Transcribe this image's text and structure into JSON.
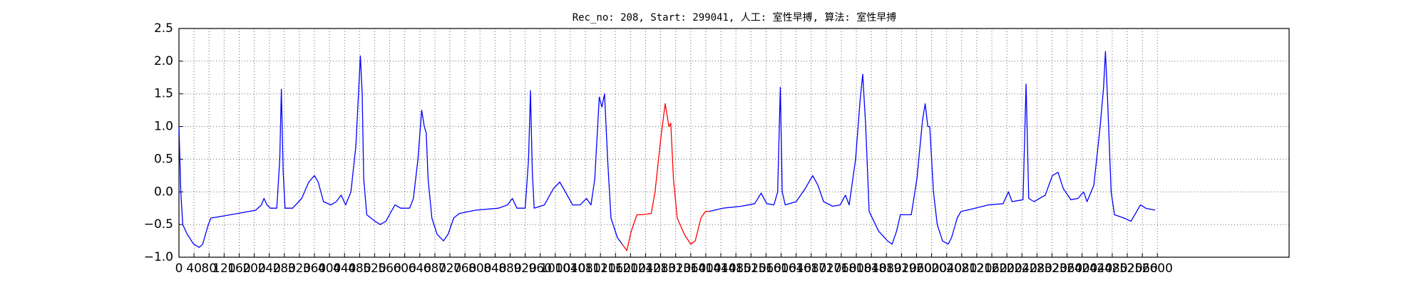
{
  "chart_data": {
    "type": "line",
    "title": "Rec_no: 208, Start: 299041, 人工: 室性早搏, 算法: 室性早搏",
    "xlim": [
      0,
      2950
    ],
    "xticks": [
      0,
      40,
      80,
      120,
      160,
      200,
      240,
      280,
      320,
      360,
      400,
      440,
      480,
      520,
      560,
      600,
      640,
      680,
      720,
      760,
      800,
      840,
      880,
      920,
      960,
      1000,
      1040,
      1080,
      1120,
      1160,
      1200,
      1240,
      1280,
      1320,
      1360,
      1400,
      1440,
      1480,
      1520,
      1560,
      1600,
      1640,
      1680,
      1720,
      1760,
      1800,
      1840,
      1880,
      1920,
      1960,
      2000,
      2040,
      2080,
      2120,
      2160,
      2200,
      2240,
      2280,
      2320,
      2360,
      2400,
      2440,
      2480,
      2520,
      2560,
      2600
    ],
    "ylim": [
      -1,
      2.5
    ],
    "yticks": [
      {
        "value": -1,
        "label": "−1.0"
      },
      {
        "value": -0.5,
        "label": "−0.5"
      },
      {
        "value": 0,
        "label": "0.0"
      },
      0.5,
      {
        "value": 1,
        "label": "1.0"
      },
      1.5,
      {
        "value": 2,
        "label": "2.0"
      },
      2.5
    ],
    "grid": true,
    "series": [
      {
        "color": "#0000ff",
        "x": [
          0,
          5,
          10,
          22,
          39,
          54,
          63,
          78,
          85,
          107,
          156,
          204,
          219,
          226,
          234,
          243,
          260,
          268,
          272,
          277,
          282,
          302,
          326,
          345,
          360,
          370,
          384,
          404,
          418,
          431,
          443,
          457,
          470,
          477,
          482,
          487,
          491,
          499,
          521,
          535,
          550,
          564,
          574,
          589,
          613,
          623,
          635,
          645,
          652,
          657,
          662,
          672,
          686,
          703,
          715,
          730,
          745,
          788,
          849,
          873,
          886,
          898,
          920,
          929,
          934,
          939,
          944,
          971,
          995,
          1012,
          1027,
          1046,
          1066,
          1083,
          1095,
          1105,
          1117,
          1124,
          1131,
          1139,
          1148,
          1165,
          1178
        ],
        "values": [
          1.0,
          0.0,
          -0.5,
          -0.65,
          -0.8,
          -0.85,
          -0.8,
          -0.5,
          -0.4,
          -0.38,
          -0.33,
          -0.28,
          -0.2,
          -0.1,
          -0.2,
          -0.25,
          -0.25,
          0.5,
          1.57,
          0.3,
          -0.25,
          -0.25,
          -0.1,
          0.15,
          0.25,
          0.15,
          -0.15,
          -0.2,
          -0.15,
          -0.05,
          -0.2,
          0.0,
          0.7,
          1.5,
          2.08,
          1.5,
          0.2,
          -0.35,
          -0.45,
          -0.5,
          -0.45,
          -0.3,
          -0.2,
          -0.25,
          -0.25,
          -0.1,
          0.5,
          1.25,
          1.0,
          0.9,
          0.2,
          -0.4,
          -0.65,
          -0.75,
          -0.65,
          -0.4,
          -0.33,
          -0.28,
          -0.25,
          -0.2,
          -0.1,
          -0.25,
          -0.25,
          0.5,
          1.55,
          0.3,
          -0.25,
          -0.2,
          0.05,
          0.15,
          0.0,
          -0.2,
          -0.2,
          -0.1,
          -0.2,
          0.2,
          1.45,
          1.3,
          1.5,
          0.5,
          -0.4,
          -0.7,
          -0.8
        ]
      },
      {
        "color": "#ff0000",
        "x": [
          1178,
          1190,
          1202,
          1217,
          1231,
          1255,
          1265,
          1280,
          1292,
          1302,
          1307,
          1314,
          1324,
          1343,
          1360,
          1372,
          1387,
          1399,
          1409
        ],
        "values": [
          -0.8,
          -0.9,
          -0.6,
          -0.35,
          -0.35,
          -0.33,
          0.0,
          0.8,
          1.35,
          1.0,
          1.05,
          0.2,
          -0.4,
          -0.65,
          -0.8,
          -0.75,
          -0.4,
          -0.3,
          -0.3
        ]
      },
      {
        "color": "#0000ff",
        "x": [
          1409,
          1445,
          1494,
          1530,
          1547,
          1562,
          1581,
          1591,
          1598,
          1603,
          1611,
          1640,
          1664,
          1684,
          1698,
          1713,
          1737,
          1757,
          1771,
          1781,
          1798,
          1810,
          1817,
          1825,
          1834,
          1859,
          1883,
          1895,
          1907,
          1917,
          1946,
          1961,
          1976,
          1983,
          1990,
          1995,
          2005,
          2015,
          2029,
          2044,
          2053,
          2068,
          2078,
          2102,
          2151,
          2190,
          2204,
          2214,
          2243,
          2251,
          2258,
          2272,
          2302,
          2321,
          2336,
          2350,
          2370,
          2389,
          2404,
          2413,
          2431,
          2448,
          2457,
          2462,
          2467,
          2477,
          2486,
          2511,
          2530,
          2545,
          2555,
          2569,
          2594
        ],
        "values": [
          -0.3,
          -0.25,
          -0.22,
          -0.18,
          -0.02,
          -0.18,
          -0.2,
          0.0,
          1.6,
          0.0,
          -0.2,
          -0.15,
          0.05,
          0.25,
          0.1,
          -0.15,
          -0.22,
          -0.2,
          -0.05,
          -0.2,
          0.5,
          1.4,
          1.8,
          1.0,
          -0.3,
          -0.6,
          -0.75,
          -0.8,
          -0.6,
          -0.35,
          -0.35,
          0.2,
          1.1,
          1.35,
          1.0,
          1.0,
          0.0,
          -0.5,
          -0.75,
          -0.8,
          -0.7,
          -0.4,
          -0.3,
          -0.27,
          -0.2,
          -0.18,
          0.0,
          -0.15,
          -0.12,
          1.65,
          -0.1,
          -0.15,
          -0.05,
          0.25,
          0.3,
          0.05,
          -0.12,
          -0.1,
          0.0,
          -0.15,
          0.1,
          1.0,
          1.6,
          2.15,
          1.5,
          0.0,
          -0.35,
          -0.4,
          -0.45,
          -0.3,
          -0.2,
          -0.25,
          -0.28
        ]
      }
    ]
  }
}
